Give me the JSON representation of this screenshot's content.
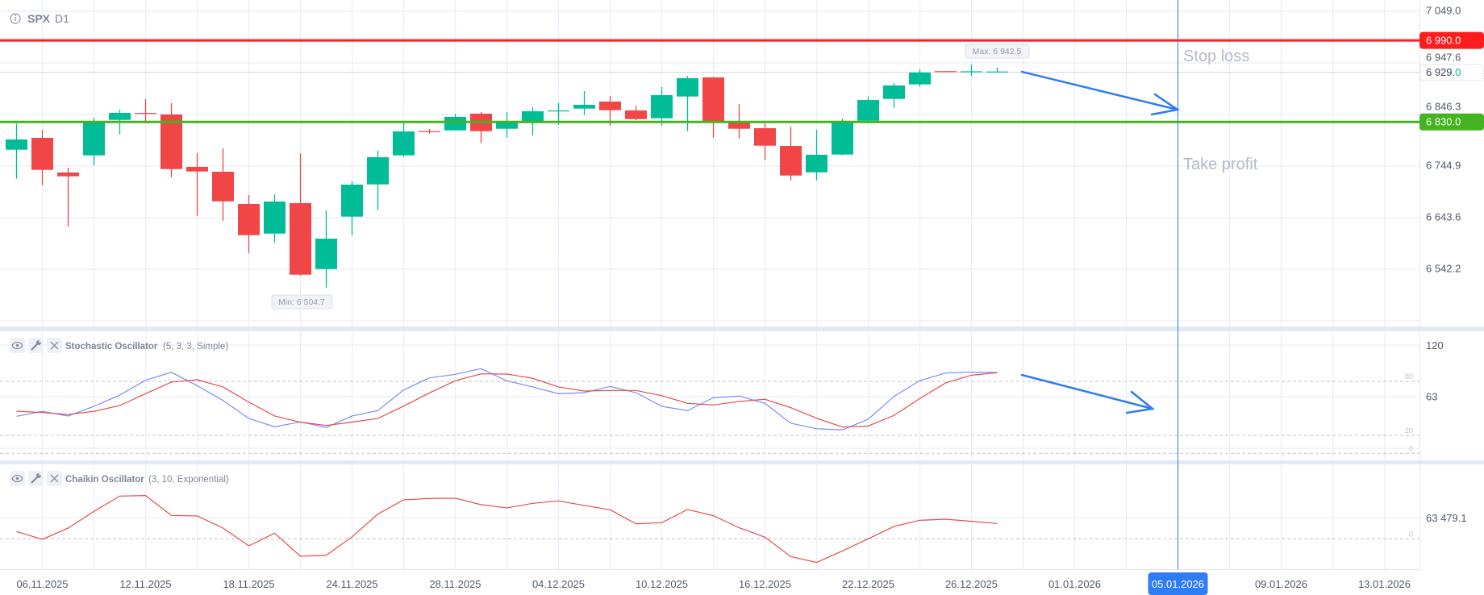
{
  "header": {
    "symbol": "SPX",
    "timeframe": "D1"
  },
  "colors": {
    "bull": "#00bd98",
    "bear": "#f04646",
    "stop_loss": "#ff1c1c",
    "take_profit": "#45b31f",
    "crosshair": "#2f7cf6",
    "stoch_k": "#7b8cff",
    "stoch_d": "#e84b4b",
    "chaikin": "#e84b4b",
    "grid": "#e5eaf6"
  },
  "price_axis": {
    "ticks": [
      "7 049.0",
      "6 947.6",
      "6 846.3",
      "6 744.9",
      "6 643.6",
      "6 542.2"
    ],
    "tick_values": [
      7049.0,
      6947.6,
      6846.3,
      6744.9,
      6643.6,
      6542.2
    ],
    "stop_loss_label": "6 990.0",
    "stop_loss_value": 6990.0,
    "take_profit_label": "6 830.0",
    "take_profit_value": 6830.0,
    "current_label_main": "6 929.",
    "current_label_last": "0",
    "current_value": 6929.0
  },
  "annotations": {
    "stop_loss": "Stop loss",
    "take_profit": "Take profit",
    "max_label": "Max: 6 942.5",
    "min_label": "Min: 6 504.7"
  },
  "chart_data": {
    "type": "candlestick",
    "dates": [
      "05.11.2025",
      "06.11.2025",
      "07.11.2025",
      "10.11.2025",
      "11.11.2025",
      "12.11.2025",
      "13.11.2025",
      "14.11.2025",
      "17.11.2025",
      "18.11.2025",
      "19.11.2025",
      "20.11.2025",
      "21.11.2025",
      "24.11.2025",
      "25.11.2025",
      "26.11.2025",
      "27.11.2025",
      "28.11.2025",
      "01.12.2025",
      "02.12.2025",
      "03.12.2025",
      "04.12.2025",
      "05.12.2025",
      "08.12.2025",
      "09.12.2025",
      "10.12.2025",
      "11.12.2025",
      "12.12.2025",
      "15.12.2025",
      "16.12.2025",
      "17.12.2025",
      "18.12.2025",
      "19.12.2025",
      "22.12.2025",
      "23.12.2025",
      "24.12.2025",
      "25.12.2025",
      "26.12.2025",
      "29.12.2025"
    ],
    "ohlc": [
      [
        6775.5,
        6826.7,
        6718.5,
        6795.6
      ],
      [
        6798.7,
        6814.6,
        6705.8,
        6735.9
      ],
      [
        6730.7,
        6740.2,
        6625.1,
        6723.2
      ],
      [
        6764.4,
        6838.3,
        6744.9,
        6828.3
      ],
      [
        6834.0,
        6854.1,
        6805.5,
        6847.8
      ],
      [
        6847.8,
        6874.7,
        6830.4,
        6846.7
      ],
      [
        6844.6,
        6866.8,
        6721.6,
        6737.5
      ],
      [
        6741.7,
        6768.6,
        6645.6,
        6732.7
      ],
      [
        6732.2,
        6778.1,
        6636.1,
        6674.1
      ],
      [
        6668.9,
        6686.3,
        6572.8,
        6607.7
      ],
      [
        6610.8,
        6687.9,
        6593.4,
        6673.7
      ],
      [
        6670.5,
        6768.6,
        6528.5,
        6530.1
      ],
      [
        6541.2,
        6656.3,
        6504.7,
        6600.8
      ],
      [
        6644.1,
        6713.2,
        6607.7,
        6706.9
      ],
      [
        6707.4,
        6773.4,
        6656.7,
        6760.7
      ],
      [
        6764.4,
        6827.2,
        6761.2,
        6811.4
      ],
      [
        6811.9,
        6816.1,
        6807.1,
        6810.3
      ],
      [
        6813.4,
        6846.2,
        6813.4,
        6839.9
      ],
      [
        6846.2,
        6849.4,
        6788.1,
        6811.9
      ],
      [
        6816.6,
        6849.4,
        6799.2,
        6830.4
      ],
      [
        6830.4,
        6858.9,
        6803.9,
        6851.0
      ],
      [
        6851.4,
        6866.8,
        6824.5,
        6852.5
      ],
      [
        6856.2,
        6890.5,
        6843.5,
        6863.6
      ],
      [
        6870.0,
        6881.0,
        6822.9,
        6853.0
      ],
      [
        6852.5,
        6862.0,
        6833.5,
        6835.6
      ],
      [
        6837.2,
        6898.5,
        6822.9,
        6882.6
      ],
      [
        6879.9,
        6920.6,
        6811.9,
        6915.9
      ],
      [
        6917.4,
        6918.0,
        6799.2,
        6830.9
      ],
      [
        6828.3,
        6865.2,
        6797.6,
        6816.6
      ],
      [
        6817.7,
        6827.2,
        6754.9,
        6783.4
      ],
      [
        6782.9,
        6820.9,
        6715.3,
        6724.8
      ],
      [
        6731.1,
        6814.6,
        6715.3,
        6765.5
      ],
      [
        6766.0,
        6836.7,
        6764.4,
        6832.0
      ],
      [
        6832.4,
        6879.5,
        6832.4,
        6873.1
      ],
      [
        6875.2,
        6906.4,
        6857.8,
        6901.6
      ],
      [
        6903.7,
        6933.3,
        6898.9,
        6926.9
      ],
      [
        6929.8,
        6930.2,
        6927.6,
        6928.5
      ],
      [
        6928.5,
        6942.5,
        6919.9,
        6929.5
      ],
      [
        6929.0,
        6937.0,
        6926.5,
        6929.0
      ]
    ],
    "time_axis_labels": [
      "06.11.2025",
      "12.11.2025",
      "18.11.2025",
      "24.11.2025",
      "28.11.2025",
      "04.12.2025",
      "10.12.2025",
      "16.12.2025",
      "22.12.2025",
      "26.12.2025",
      "01.01.2026",
      "05.01.2026",
      "09.01.2026",
      "13.01.2026"
    ],
    "highlighted_date": "05.01.2026"
  },
  "stochastic": {
    "name": "Stochastic Oscillator",
    "params": "(5, 3, 3, Simple)",
    "axis_ticks": [
      "120",
      "63"
    ],
    "axis_values": [
      120,
      63
    ],
    "levels": [
      "80",
      "20",
      "0"
    ],
    "level_values": [
      80,
      20,
      0
    ],
    "k": [
      41.2,
      46.6,
      41.5,
      52.2,
      64.7,
      81.1,
      90.1,
      75.2,
      58.7,
      38.8,
      29.5,
      34.9,
      28.6,
      41.5,
      47.4,
      70.4,
      83.8,
      87.7,
      94.0,
      80.5,
      73.7,
      66.2,
      67.4,
      74.3,
      67.4,
      52.2,
      47.4,
      61.8,
      63.6,
      55.5,
      33.4,
      27.4,
      26.0,
      37.9,
      63.2,
      80.8,
      89.2,
      90.1,
      89.8
    ],
    "d": [
      46.8,
      45.3,
      43.2,
      46.6,
      53.1,
      66.2,
      79.1,
      81.7,
      73.7,
      56.9,
      41.5,
      34.6,
      31.0,
      34.6,
      38.8,
      52.5,
      67.1,
      80.6,
      88.3,
      88.0,
      83.3,
      73.7,
      69.2,
      69.8,
      69.8,
      64.1,
      55.5,
      53.7,
      57.6,
      60.0,
      50.7,
      39.0,
      29.2,
      30.4,
      42.1,
      60.9,
      78.2,
      86.8,
      89.5
    ]
  },
  "chaikin": {
    "name": "Chaikin Oscillator",
    "params": "(3, 10, Exponential)",
    "axis_ticks": [
      "63 479.1"
    ],
    "axis_values": [
      63479.1
    ],
    "levels": [
      "0"
    ],
    "level_values": [
      0
    ],
    "values": [
      22000,
      -1600,
      32500,
      83000,
      129400,
      131000,
      70800,
      69200,
      32500,
      -21200,
      17100,
      -52900,
      -49600,
      5700,
      74900,
      118000,
      122100,
      122900,
      103300,
      93600,
      107400,
      114700,
      100900,
      87900,
      45600,
      48800,
      88700,
      70000,
      33400,
      4900,
      -53700,
      -71600,
      -36600,
      0,
      37400,
      56100,
      59400,
      52900,
      46400
    ]
  },
  "icons": {
    "info": "info-icon",
    "eye": "eye-icon",
    "wrench": "wrench-icon",
    "close": "close-icon"
  }
}
